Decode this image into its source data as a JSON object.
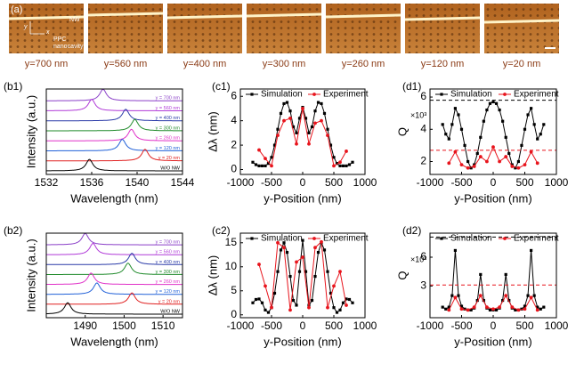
{
  "panel_a": {
    "label": "(a)",
    "nw_label": "NW",
    "ppc_label": [
      "PPC",
      "nanocavity"
    ],
    "axis_labels": [
      "x",
      "y"
    ],
    "images": [
      "y=700 nm",
      "y=560 nm",
      "y=400 nm",
      "y=300 nm",
      "y=260 nm",
      "y=120 nm",
      "y=20 nm"
    ]
  },
  "chart_data": [
    {
      "type": "spectra",
      "panel": "(b1)",
      "xlabel": "Wavelength (nm)",
      "ylabel": "Intensity (a.u.)",
      "xlim": [
        1532,
        1544
      ],
      "xticks": [
        1532,
        1536,
        1540,
        1544
      ],
      "series": [
        {
          "name": "y = 700 nm",
          "color": "#8a3fc8",
          "peak": 1537
        },
        {
          "name": "y = 560 nm",
          "color": "#b03ad8",
          "peak": 1536
        },
        {
          "name": "y = 400 nm",
          "color": "#2a3aa8",
          "peak": 1539
        },
        {
          "name": "y = 300 nm",
          "color": "#1f8a2a",
          "peak": 1539.8
        },
        {
          "name": "y = 260 nm",
          "color": "#e030c8",
          "peak": 1539.5
        },
        {
          "name": "y = 120 nm",
          "color": "#2060d8",
          "peak": 1538.7
        },
        {
          "name": "y = 20 nm",
          "color": "#e02020",
          "peak": 1540.7
        },
        {
          "name": "W/O NW",
          "color": "#000000",
          "peak": 1535.8
        }
      ]
    },
    {
      "type": "line",
      "panel": "(c1)",
      "xlabel": "y-Position (nm)",
      "ylabel": "Δλ (nm)",
      "xlim": [
        -1000,
        1000
      ],
      "xticks": [
        -1000,
        -500,
        0,
        500,
        1000
      ],
      "ylim": [
        -0.4,
        6.6
      ],
      "yticks": [
        0,
        2,
        4,
        6
      ],
      "series": [
        {
          "name": "Simulation",
          "color": "#000000",
          "marker": "square",
          "x": [
            -800,
            -750,
            -700,
            -650,
            -600,
            -550,
            -500,
            -450,
            -400,
            -350,
            -300,
            -250,
            -200,
            -150,
            -100,
            -50,
            0,
            50,
            100,
            150,
            200,
            250,
            300,
            350,
            400,
            450,
            500,
            550,
            600,
            650,
            700,
            750,
            800
          ],
          "values": [
            0.6,
            0.4,
            0.3,
            0.3,
            0.3,
            0.5,
            1.0,
            2.0,
            3.3,
            4.6,
            5.4,
            5.5,
            4.8,
            3.5,
            3.0,
            4.2,
            5.1,
            4.2,
            3.0,
            3.5,
            4.8,
            5.5,
            5.4,
            4.6,
            3.3,
            2.0,
            1.0,
            0.5,
            0.3,
            0.3,
            0.3,
            0.4,
            0.6
          ]
        },
        {
          "name": "Experiment",
          "color": "#e8141c",
          "marker": "circle",
          "x": [
            -700,
            -600,
            -500,
            -400,
            -300,
            -200,
            -100,
            0,
            100,
            200,
            300,
            400,
            500,
            600,
            700
          ],
          "values": [
            1.6,
            0.9,
            0.3,
            2.8,
            4.0,
            4.2,
            2.1,
            5.0,
            2.1,
            3.8,
            4.0,
            2.8,
            0.3,
            0.6,
            1.5
          ]
        }
      ]
    },
    {
      "type": "line",
      "panel": "(d1)",
      "xlabel": "y-Position (nm)",
      "ylabel": "Q",
      "scale_label": "×10³",
      "xlim": [
        -1000,
        1000
      ],
      "xticks": [
        -1000,
        -500,
        0,
        500,
        1000
      ],
      "ylim": [
        1.2,
        6.5
      ],
      "yticks": [
        2,
        4,
        6
      ],
      "reference_lines": [
        {
          "value": 5.8,
          "color": "#000000"
        },
        {
          "value": 2.7,
          "color": "#e8141c"
        }
      ],
      "series": [
        {
          "name": "Simulation",
          "color": "#000000",
          "marker": "square",
          "x": [
            -800,
            -750,
            -700,
            -650,
            -600,
            -550,
            -500,
            -450,
            -400,
            -350,
            -300,
            -250,
            -200,
            -150,
            -100,
            -50,
            0,
            50,
            100,
            150,
            200,
            250,
            300,
            350,
            400,
            450,
            500,
            550,
            600,
            650,
            700,
            750,
            800
          ],
          "values": [
            4.3,
            3.7,
            3.4,
            4.3,
            5.3,
            4.9,
            4.0,
            3.0,
            2.0,
            1.6,
            1.8,
            2.5,
            3.5,
            4.5,
            5.2,
            5.6,
            5.7,
            5.6,
            5.2,
            4.5,
            3.5,
            2.5,
            1.8,
            1.6,
            2.0,
            3.0,
            4.0,
            4.9,
            5.3,
            4.3,
            3.4,
            3.7,
            4.3
          ]
        },
        {
          "name": "Experiment",
          "color": "#e8141c",
          "marker": "circle",
          "x": [
            -700,
            -600,
            -500,
            -400,
            -300,
            -200,
            -100,
            0,
            100,
            200,
            300,
            400,
            500,
            600,
            700
          ],
          "values": [
            1.9,
            2.6,
            1.8,
            1.6,
            1.7,
            2.3,
            2.0,
            2.9,
            2.0,
            2.3,
            1.7,
            1.6,
            1.8,
            2.6,
            1.9
          ]
        }
      ]
    },
    {
      "type": "spectra",
      "panel": "(b2)",
      "xlabel": "Wavelength (nm)",
      "ylabel": "Intensity (a.u.)",
      "xlim": [
        1480,
        1515
      ],
      "xticks": [
        1490,
        1500,
        1510
      ],
      "series": [
        {
          "name": "y = 700 nm",
          "color": "#8a3fc8",
          "peak": 1490
        },
        {
          "name": "y = 560 nm",
          "color": "#b03ad8",
          "peak": 1492
        },
        {
          "name": "y = 400 nm",
          "color": "#2a3aa8",
          "peak": 1502
        },
        {
          "name": "y = 300 nm",
          "color": "#1f8a2a",
          "peak": 1501
        },
        {
          "name": "y = 260 nm",
          "color": "#e030c8",
          "peak": 1491.5
        },
        {
          "name": "y = 120 nm",
          "color": "#2060d8",
          "peak": 1493
        },
        {
          "name": "y = 20 nm",
          "color": "#e02020",
          "peak": 1502
        },
        {
          "name": "W/O NW",
          "color": "#000000",
          "peak": 1485.5
        }
      ]
    },
    {
      "type": "line",
      "panel": "(c2)",
      "xlabel": "y-Position (nm)",
      "ylabel": "Δλ (nm)",
      "xlim": [
        -1000,
        1000
      ],
      "xticks": [
        -1000,
        -500,
        0,
        500,
        1000
      ],
      "ylim": [
        -0.6,
        17
      ],
      "yticks": [
        0,
        5,
        10,
        15
      ],
      "series": [
        {
          "name": "Simulation",
          "color": "#000000",
          "marker": "square",
          "x": [
            -800,
            -750,
            -700,
            -650,
            -600,
            -550,
            -500,
            -450,
            -400,
            -350,
            -300,
            -250,
            -200,
            -150,
            -100,
            -50,
            0,
            50,
            100,
            150,
            200,
            250,
            300,
            350,
            400,
            450,
            500,
            550,
            600,
            650,
            700,
            750,
            800
          ],
          "values": [
            2.5,
            3.2,
            3.3,
            2.5,
            1.0,
            0.5,
            1.5,
            4.5,
            9,
            13.5,
            15,
            13,
            8,
            3,
            2,
            9,
            15.5,
            9,
            2,
            3,
            8,
            13,
            15,
            13.5,
            9,
            4.5,
            1.5,
            0.5,
            1.0,
            2.5,
            3.3,
            3.2,
            2.5
          ]
        },
        {
          "name": "Experiment",
          "color": "#e8141c",
          "marker": "circle",
          "x": [
            -700,
            -600,
            -500,
            -400,
            -300,
            -200,
            -100,
            0,
            100,
            200,
            300,
            400,
            500,
            600,
            700
          ],
          "values": [
            10.5,
            6,
            1.5,
            15,
            14,
            1,
            11,
            12,
            1.5,
            14,
            15.2,
            1.5,
            6,
            9,
            2
          ]
        }
      ]
    },
    {
      "type": "line",
      "panel": "(d2)",
      "xlabel": "y-Position (nm)",
      "ylabel": "Q",
      "scale_label": "×10³",
      "xlim": [
        -1000,
        1000
      ],
      "xticks": [
        -1000,
        -500,
        0,
        500,
        1000
      ],
      "ylim": [
        -0.3,
        8.5
      ],
      "yticks": [
        3,
        6
      ],
      "reference_lines": [
        {
          "value": 8.1,
          "color": "#000000"
        },
        {
          "value": 3.1,
          "color": "#e8141c"
        }
      ],
      "series": [
        {
          "name": "Simulation",
          "color": "#000000",
          "marker": "square",
          "x": [
            -800,
            -750,
            -700,
            -650,
            -600,
            -550,
            -500,
            -450,
            -400,
            -350,
            -300,
            -250,
            -200,
            -150,
            -100,
            -50,
            0,
            50,
            100,
            150,
            200,
            250,
            300,
            350,
            400,
            450,
            500,
            550,
            600,
            650,
            700,
            750,
            800
          ],
          "values": [
            0.8,
            0.6,
            0.8,
            2,
            6.7,
            2,
            0.9,
            0.6,
            0.5,
            0.5,
            0.7,
            1.5,
            4.2,
            1.5,
            0.7,
            0.5,
            0.5,
            0.5,
            0.7,
            1.5,
            4.2,
            1.5,
            0.7,
            0.5,
            0.5,
            0.6,
            0.9,
            2,
            6.7,
            2,
            0.8,
            0.6,
            0.8
          ]
        },
        {
          "name": "Experiment",
          "color": "#e8141c",
          "marker": "circle",
          "x": [
            -700,
            -600,
            -500,
            -400,
            -300,
            -200,
            -100,
            0,
            100,
            200,
            300,
            400,
            500,
            600,
            700
          ],
          "values": [
            0.5,
            1.8,
            0.6,
            0.5,
            0.8,
            2.0,
            0.8,
            0.6,
            0.8,
            2.0,
            0.8,
            0.5,
            0.6,
            1.8,
            0.5
          ]
        }
      ]
    }
  ]
}
